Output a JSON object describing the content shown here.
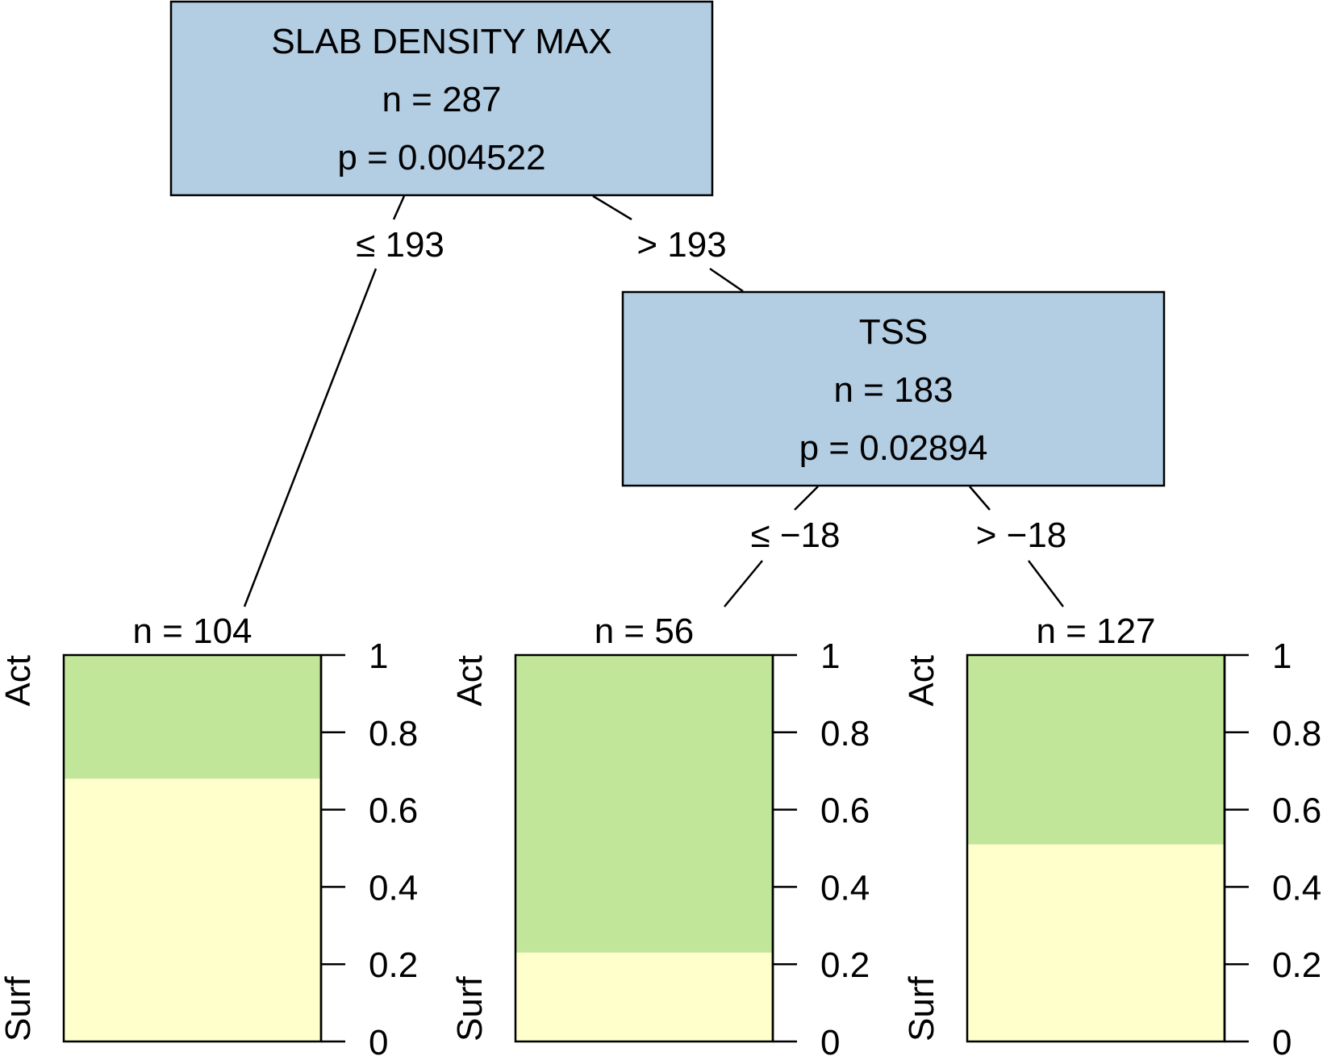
{
  "colors": {
    "node_fill": "#b3cde3",
    "act": "#c2e699",
    "surf": "#ffffcc",
    "stroke": "#000000"
  },
  "inner_nodes": [
    {
      "id": "n1",
      "variable": "SLAB DENSITY MAX",
      "n_label": "n = 287",
      "p_label": "p = 0.004522"
    },
    {
      "id": "n2",
      "variable": "TSS",
      "n_label": "n = 183",
      "p_label": "p = 0.02894"
    }
  ],
  "edges": [
    {
      "id": "e1",
      "label": "≤ 193"
    },
    {
      "id": "e2",
      "label": "> 193"
    },
    {
      "id": "e3",
      "label": "≤ −18"
    },
    {
      "id": "e4",
      "label": "> −18"
    }
  ],
  "class_labels": {
    "top": "Act",
    "bottom": "Surf"
  },
  "chart_data": {
    "type": "bar",
    "stacked": true,
    "ylim": [
      0,
      1
    ],
    "yticks": [
      "0",
      "0.2",
      "0.4",
      "0.6",
      "0.8",
      "1"
    ],
    "categories": [
      "n = 104",
      "n = 56",
      "n = 127"
    ],
    "series": [
      {
        "name": "Surf",
        "values": [
          0.68,
          0.23,
          0.51
        ]
      },
      {
        "name": "Act",
        "values": [
          0.32,
          0.77,
          0.49
        ]
      }
    ]
  }
}
